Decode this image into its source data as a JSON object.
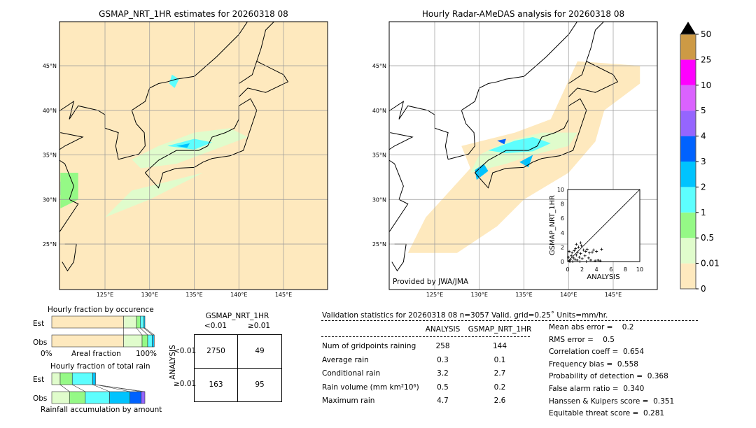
{
  "left_map": {
    "title": "GSMAP_NRT_1HR estimates for 20260318 08"
  },
  "right_map": {
    "title": "Hourly Radar-AMeDAS analysis for 20260318 08",
    "credit": "Provided by JWA/JMA"
  },
  "lat_ticks": [
    "45°N",
    "40°N",
    "35°N",
    "30°N",
    "25°N"
  ],
  "lon_ticks": [
    "125°E",
    "130°E",
    "135°E",
    "140°E",
    "145°E"
  ],
  "colors": {
    "ocean_bg": "#fee9be",
    "land_line": "#000000",
    "grid": "#999999"
  },
  "colorbar": {
    "labels": [
      "0",
      "0.01",
      "0.5",
      "1",
      "2",
      "3",
      "4",
      "5",
      "10",
      "25",
      "50"
    ],
    "colors": [
      "#fee9be",
      "#e0fccc",
      "#95f986",
      "#5dfefe",
      "#00c3fe",
      "#0062fe",
      "#9565fe",
      "#da62fe",
      "#fe00fe",
      "#cd9a45"
    ],
    "extend_color": "#000000"
  },
  "chart_data": [
    {
      "type": "scatter",
      "xlabel": "ANALYSIS",
      "ylabel": "GSMAP_NRT_1HR",
      "xlim": [
        0,
        10
      ],
      "ylim": [
        0,
        10
      ],
      "xticks": [
        "0",
        "2",
        "4",
        "6",
        "8",
        "10"
      ],
      "yticks": [
        "0",
        "2",
        "4",
        "6",
        "8",
        "10"
      ],
      "diagonal": true,
      "points": [
        [
          0.2,
          0.1
        ],
        [
          0.4,
          0.3
        ],
        [
          0.5,
          0.8
        ],
        [
          0.6,
          1.2
        ],
        [
          0.8,
          0.5
        ],
        [
          0.9,
          1.5
        ],
        [
          1.0,
          0.3
        ],
        [
          1.1,
          1.8
        ],
        [
          1.2,
          0.9
        ],
        [
          1.3,
          0.2
        ],
        [
          1.4,
          1.3
        ],
        [
          1.5,
          2.0
        ],
        [
          1.6,
          0.6
        ],
        [
          1.8,
          1.1
        ],
        [
          1.9,
          2.2
        ],
        [
          2.0,
          0.4
        ],
        [
          2.2,
          1.6
        ],
        [
          2.4,
          0.8
        ],
        [
          2.5,
          1.4
        ],
        [
          2.7,
          1.7
        ],
        [
          2.9,
          0.5
        ],
        [
          3.0,
          1.2
        ],
        [
          3.2,
          0.2
        ],
        [
          3.4,
          1.3
        ],
        [
          3.6,
          1.6
        ],
        [
          3.8,
          0.1
        ],
        [
          4.0,
          1.4
        ],
        [
          4.2,
          0.2
        ],
        [
          4.5,
          0.1
        ],
        [
          4.7,
          1.7
        ],
        [
          0.3,
          0.0
        ],
        [
          0.7,
          0.0
        ],
        [
          1.7,
          0.0
        ],
        [
          2.6,
          0.0
        ],
        [
          0.1,
          0.6
        ],
        [
          0.2,
          1.4
        ],
        [
          1.2,
          2.4
        ],
        [
          1.8,
          2.6
        ]
      ]
    },
    {
      "type": "bar",
      "title": "Hourly fraction by occurence",
      "xlabel": "Areal fraction",
      "xtick_labels": [
        "0%",
        "100%"
      ],
      "categories": [
        "Est",
        "Obs"
      ],
      "series": [
        {
          "values": [
            0.77,
            0.77
          ]
        },
        {
          "values": [
            0.14,
            0.2
          ]
        },
        {
          "values": [
            0.04,
            0.06
          ]
        },
        {
          "values": [
            0.04,
            0.05
          ]
        },
        {
          "values": [
            0.01,
            0.02
          ]
        }
      ]
    },
    {
      "type": "bar",
      "title": "Hourly fraction of total rain",
      "xlabel": "Rainfall accumulation by amount",
      "categories": [
        "Est",
        "Obs"
      ],
      "series": [
        {
          "values": [
            0.09,
            0.19
          ]
        },
        {
          "values": [
            0.13,
            0.17
          ]
        },
        {
          "values": [
            0.22,
            0.26
          ]
        },
        {
          "values": [
            0.03,
            0.22
          ]
        },
        {
          "values": [
            0.0,
            0.12
          ]
        },
        {
          "values": [
            0.0,
            0.04
          ]
        }
      ]
    }
  ],
  "contingency": {
    "title": "GSMAP_NRT_1HR",
    "col_headers": [
      "<0.01",
      "≥0.01"
    ],
    "row_label": "ANALYSIS",
    "row_headers": [
      "<0.01",
      "≥0.01"
    ],
    "cells": [
      [
        "2750",
        "49"
      ],
      [
        "163",
        "95"
      ]
    ]
  },
  "stats": {
    "header": "Validation statistics for 20260318 08  n=3057 Valid. grid=0.25˚ Units=mm/hr.",
    "col_headers": [
      "ANALYSIS",
      "GSMAP_NRT_1HR"
    ],
    "rows": [
      {
        "label": "Num of gridpoints raining",
        "a": "258",
        "g": "144"
      },
      {
        "label": "Average rain",
        "a": "0.3",
        "g": "0.1"
      },
      {
        "label": "Conditional rain",
        "a": "3.2",
        "g": "2.7"
      },
      {
        "label": "Rain volume (mm km²10⁶)",
        "a": "0.5",
        "g": "0.2"
      },
      {
        "label": "Maximum rain",
        "a": "4.7",
        "g": "2.6"
      }
    ],
    "scores": [
      "Mean abs error =    0.2",
      "RMS error =    0.5",
      "Correlation coeff =  0.654",
      "Frequency bias =  0.558",
      "Probability of detection =  0.368",
      "False alarm ratio =  0.340",
      "Hanssen & Kuipers score =  0.351",
      "Equitable threat score =  0.281"
    ]
  }
}
